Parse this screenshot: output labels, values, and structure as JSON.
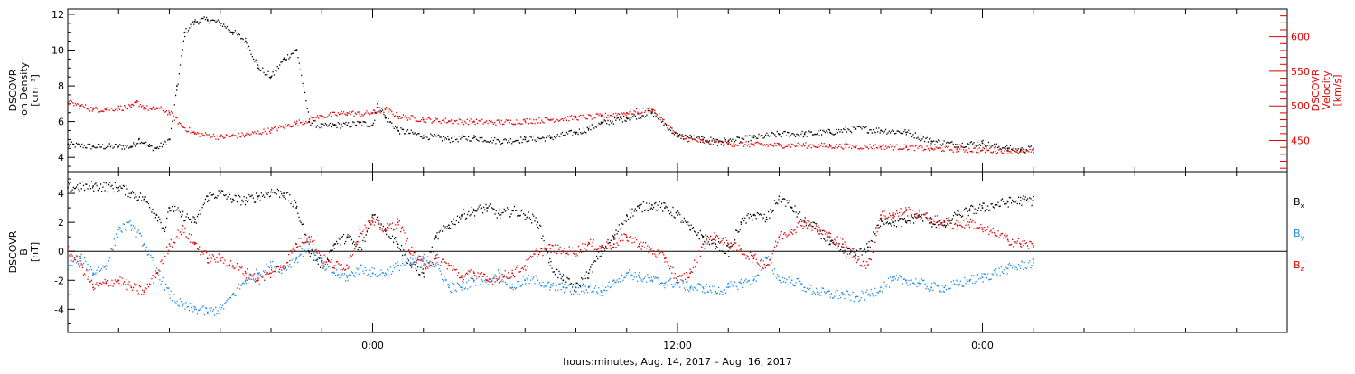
{
  "colors": {
    "black": "#000000",
    "red": "#e00000",
    "blue": "#1e88e5",
    "axis": "#000000"
  },
  "chart_data": [
    {
      "type": "scatter",
      "panel": "plasma",
      "title": "",
      "ylabel_left": [
        "DSCOVR",
        "Ion Density",
        "[cm⁻³]"
      ],
      "ylabel_right": [
        "DSCOVR",
        "Velocity",
        "[km/s]"
      ],
      "ylim_left": [
        3.2,
        12.3
      ],
      "ylim_right": [
        405,
        640
      ],
      "yticks_left": [
        {
          "value": 4,
          "label": "4"
        },
        {
          "value": 6,
          "label": "6"
        },
        {
          "value": 8,
          "label": "8"
        },
        {
          "value": 10,
          "label": "10"
        },
        {
          "value": 12,
          "label": "12"
        }
      ],
      "yticks_right": [
        {
          "value": 450,
          "label": "450"
        },
        {
          "value": 500,
          "label": "500"
        },
        {
          "value": 550,
          "label": "550"
        },
        {
          "value": 600,
          "label": "600"
        }
      ],
      "series": [
        {
          "color": "black",
          "axis": "left",
          "hours": [
            0,
            1,
            2,
            2.5,
            2.6,
            2.8,
            3,
            3.2,
            3.5,
            4,
            4.3,
            4.6,
            5,
            5.5,
            6,
            6.5,
            7,
            7.5,
            8,
            8.5,
            9,
            9.5,
            10,
            10.5,
            11,
            11.5,
            12,
            12.1,
            12.2,
            12.5,
            13,
            14,
            15,
            16,
            17,
            18,
            19,
            20,
            20.5,
            21,
            22,
            23,
            24,
            25,
            26,
            27,
            28,
            29,
            30,
            31,
            32,
            33,
            34,
            35,
            36,
            36.5,
            37,
            37.5,
            38
          ],
          "values": [
            4.7,
            4.6,
            4.6,
            4.6,
            4.7,
            5.0,
            4.8,
            4.6,
            4.5,
            5.0,
            8.0,
            11.0,
            11.6,
            11.7,
            11.5,
            11.0,
            10.5,
            9.0,
            8.5,
            9.5,
            10.0,
            6.0,
            5.7,
            5.8,
            5.8,
            5.9,
            5.8,
            6.5,
            7.0,
            6.2,
            5.5,
            5.2,
            5.0,
            5.1,
            4.9,
            5.0,
            5.1,
            5.4,
            5.6,
            5.9,
            6.2,
            6.5,
            5.2,
            5.0,
            4.9,
            5.1,
            5.3,
            5.3,
            5.4,
            5.6,
            5.5,
            5.4,
            4.9,
            4.7,
            4.8,
            4.6,
            4.5,
            4.4,
            4.5
          ]
        },
        {
          "color": "red",
          "axis": "right",
          "hours": [
            0,
            0.5,
            1,
            1.5,
            2,
            2.5,
            2.7,
            3,
            3.3,
            3.5,
            4,
            4.5,
            5,
            6,
            7,
            8,
            9,
            10,
            11,
            11.5,
            12,
            12.5,
            13,
            14,
            15,
            16,
            17,
            18,
            19,
            20,
            21,
            22,
            23,
            24,
            25,
            26,
            27,
            28,
            29,
            30,
            31,
            32,
            33,
            34,
            35,
            36,
            37,
            37.5,
            38
          ],
          "values": [
            505,
            500,
            495,
            495,
            497,
            498,
            505,
            498,
            495,
            497,
            490,
            470,
            460,
            455,
            458,
            465,
            475,
            485,
            490,
            488,
            490,
            495,
            485,
            480,
            478,
            477,
            476,
            478,
            480,
            483,
            485,
            490,
            495,
            455,
            448,
            445,
            444,
            443,
            443,
            442,
            441,
            441,
            440,
            438,
            437,
            436,
            435,
            434,
            433
          ]
        }
      ]
    },
    {
      "type": "scatter",
      "panel": "magnetic",
      "title": "",
      "ylabel": [
        "DSCOVR",
        "B",
        "[nT]"
      ],
      "ylim": [
        -5.6,
        5.5
      ],
      "yticks": [
        {
          "value": -4,
          "label": "-4"
        },
        {
          "value": -2,
          "label": "-2"
        },
        {
          "value": 0,
          "label": "0"
        },
        {
          "value": 2,
          "label": "2"
        },
        {
          "value": 4,
          "label": "4"
        }
      ],
      "zero_line": true,
      "legend_location": "right",
      "series": [
        {
          "name": "B",
          "subscript": "x",
          "color": "black",
          "hours": [
            0,
            1,
            2,
            2.5,
            3,
            3.5,
            3.8,
            4,
            4.5,
            5,
            5.5,
            6,
            6.5,
            7,
            7.5,
            8,
            8.5,
            9,
            9.5,
            10,
            10.5,
            11,
            11.5,
            12,
            12.5,
            13,
            13.5,
            14,
            14.5,
            15,
            15.5,
            16,
            16.5,
            17,
            17.5,
            18,
            18.5,
            19,
            19.5,
            20,
            20.5,
            21,
            21.5,
            22,
            22.5,
            23,
            23.5,
            24,
            24.5,
            25,
            25.5,
            26,
            26.5,
            27,
            27.5,
            28,
            28.5,
            29,
            29.5,
            30,
            30.5,
            31,
            31.5,
            32,
            32.5,
            33,
            33.5,
            34,
            34.5,
            35,
            35.5,
            36,
            36.5,
            37,
            37.5,
            38
          ],
          "values": [
            4.4,
            4.5,
            4.4,
            4.0,
            3.6,
            2.5,
            1.5,
            3.0,
            2.5,
            2.0,
            3.8,
            4.0,
            3.6,
            3.5,
            3.8,
            4.1,
            4.0,
            3.0,
            0.0,
            -1.0,
            0.5,
            1.0,
            0.0,
            2.5,
            1.5,
            0.5,
            -1.0,
            -1.5,
            1.0,
            1.8,
            2.5,
            2.8,
            3.0,
            2.5,
            2.8,
            2.5,
            2.0,
            -1.0,
            -2.0,
            -2.5,
            -1.5,
            0.0,
            1.0,
            2.5,
            3.0,
            3.2,
            3.0,
            2.5,
            1.5,
            1.0,
            0.5,
            0.0,
            2.0,
            2.5,
            2.2,
            3.8,
            3.0,
            2.0,
            1.5,
            0.5,
            0.0,
            -0.2,
            0.3,
            2.2,
            2.0,
            2.0,
            2.5,
            2.0,
            1.8,
            2.5,
            2.8,
            3.0,
            3.2,
            3.4,
            3.5,
            3.5
          ]
        },
        {
          "name": "B",
          "subscript": "y",
          "color": "blue",
          "hours": [
            0,
            0.5,
            1,
            1.5,
            2,
            2.5,
            3,
            3.5,
            4,
            4.5,
            5,
            5.5,
            6,
            6.5,
            7,
            7.5,
            8,
            8.5,
            9,
            9.5,
            10,
            10.5,
            11,
            11.5,
            12,
            12.5,
            13,
            13.5,
            14,
            14.5,
            15,
            15.5,
            16,
            16.5,
            17,
            17.5,
            18,
            18.5,
            19,
            19.5,
            20,
            20.5,
            21,
            21.5,
            22,
            22.5,
            23,
            23.5,
            24,
            24.5,
            25,
            25.5,
            26,
            26.5,
            27,
            27.5,
            28,
            28.5,
            29,
            29.5,
            30,
            30.5,
            31,
            31.5,
            32,
            32.5,
            33,
            33.5,
            34,
            34.5,
            35,
            35.5,
            36,
            36.5,
            37,
            37.5,
            38
          ],
          "values": [
            -1.0,
            -0.5,
            -1.5,
            -1.0,
            1.5,
            1.8,
            0.5,
            -1.5,
            -3.0,
            -3.8,
            -4.0,
            -4.2,
            -4.0,
            -3.0,
            -2.0,
            -1.5,
            -1.0,
            -1.2,
            -0.5,
            0.5,
            -1.0,
            -1.5,
            -1.8,
            -1.2,
            -1.5,
            -1.5,
            -1.0,
            -0.8,
            -0.5,
            -1.0,
            -2.5,
            -2.5,
            -2.0,
            -2.0,
            -1.5,
            -2.5,
            -2.0,
            -2.0,
            -2.5,
            -2.5,
            -2.8,
            -2.5,
            -2.8,
            -2.0,
            -1.5,
            -1.8,
            -2.0,
            -2.2,
            -2.2,
            -2.5,
            -2.5,
            -2.8,
            -2.5,
            -2.2,
            -2.0,
            -0.5,
            -2.0,
            -2.0,
            -2.5,
            -2.8,
            -3.0,
            -3.0,
            -3.2,
            -3.0,
            -2.5,
            -2.0,
            -2.0,
            -2.2,
            -2.5,
            -2.5,
            -2.3,
            -2.0,
            -1.8,
            -1.5,
            -1.2,
            -1.0,
            -0.8
          ]
        },
        {
          "name": "B",
          "subscript": "z",
          "color": "red",
          "hours": [
            0,
            0.5,
            1,
            1.5,
            2,
            2.5,
            3,
            3.5,
            4,
            4.5,
            5,
            5.5,
            6,
            6.5,
            7,
            7.5,
            8,
            8.5,
            9,
            9.5,
            10,
            10.5,
            11,
            11.5,
            12,
            12.5,
            13,
            13.5,
            14,
            14.5,
            15,
            15.5,
            16,
            16.5,
            17,
            17.5,
            18,
            18.5,
            19,
            19.5,
            20,
            20.5,
            21,
            21.5,
            22,
            22.5,
            23,
            23.5,
            24,
            24.5,
            25,
            25.5,
            26,
            26.5,
            27,
            27.5,
            28,
            28.5,
            29,
            29.5,
            30,
            30.5,
            31,
            31.5,
            32,
            32.5,
            33,
            33.5,
            34,
            34.5,
            35,
            35.5,
            36,
            36.5,
            37,
            37.5,
            38
          ],
          "values": [
            0.0,
            -1.0,
            -2.5,
            -2.2,
            -2.0,
            -2.5,
            -2.8,
            -1.5,
            0.5,
            1.5,
            0.5,
            -0.5,
            -0.5,
            -1.0,
            -1.5,
            -2.0,
            -1.5,
            -1.0,
            0.5,
            1.0,
            -0.5,
            -1.0,
            -1.0,
            1.5,
            2.0,
            1.5,
            2.0,
            0.0,
            -1.0,
            -0.5,
            -1.0,
            -1.8,
            -1.5,
            -2.0,
            -1.8,
            -1.5,
            -1.0,
            0.0,
            0.2,
            0.0,
            0.0,
            0.5,
            0.3,
            0.5,
            1.0,
            0.5,
            0.0,
            -0.5,
            -2.0,
            -1.5,
            0.5,
            1.0,
            0.5,
            0.0,
            -0.5,
            -1.0,
            1.0,
            1.5,
            2.0,
            1.5,
            1.0,
            0.5,
            -0.5,
            -1.0,
            2.5,
            2.5,
            2.8,
            2.5,
            2.2,
            2.0,
            1.8,
            2.0,
            1.5,
            1.2,
            0.8,
            0.5,
            0.4
          ]
        }
      ]
    }
  ],
  "xaxis": {
    "xlim_hours": [
      0,
      48
    ],
    "major_ticks": [
      {
        "hour": 12,
        "label": "0:00"
      },
      {
        "hour": 24,
        "label": "12:00"
      },
      {
        "hour": 36,
        "label": "0:00"
      }
    ],
    "minor_tick_step_hours": 2,
    "xlabel": "hours:minutes, Aug. 14, 2017 – Aug. 16, 2017"
  }
}
